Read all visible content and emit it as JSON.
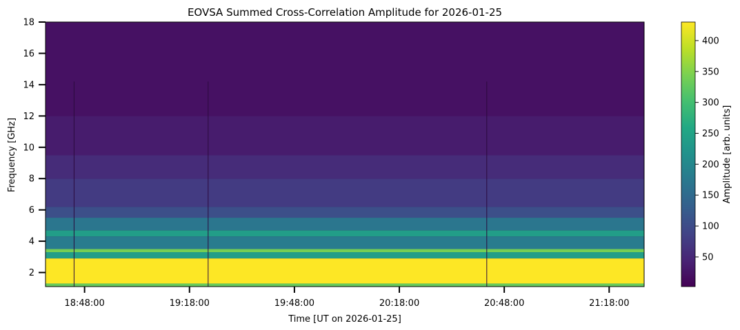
{
  "chart_data": {
    "type": "heatmap",
    "title": "EOVSA Summed Cross-Correlation Amplitude for 2026-01-25",
    "xlabel": "Time [UT on 2026-01-25]",
    "ylabel": "Frequency [GHz]",
    "colorbar_label": "Amplitude [arb. units]",
    "colormap": "viridis",
    "x_start": "18:36:50",
    "x_end": "21:28:00",
    "x_ticks": [
      "18:48:00",
      "19:18:00",
      "19:48:00",
      "20:18:00",
      "20:48:00",
      "21:18:00"
    ],
    "y_range": [
      1.1,
      18.0
    ],
    "y_ticks": [
      2,
      4,
      6,
      8,
      10,
      12,
      14,
      16,
      18
    ],
    "color_range": [
      2,
      430
    ],
    "colorbar_ticks": [
      50,
      100,
      150,
      200,
      250,
      300,
      350,
      400
    ],
    "frequency_bands": [
      {
        "freq_from": 1.1,
        "freq_to": 1.3,
        "amplitude": 330
      },
      {
        "freq_from": 1.3,
        "freq_to": 2.9,
        "amplitude": 430
      },
      {
        "freq_from": 2.9,
        "freq_to": 3.3,
        "amplitude": 240
      },
      {
        "freq_from": 3.3,
        "freq_to": 3.5,
        "amplitude": 340
      },
      {
        "freq_from": 3.5,
        "freq_to": 4.3,
        "amplitude": 180
      },
      {
        "freq_from": 4.3,
        "freq_to": 4.7,
        "amplitude": 240
      },
      {
        "freq_from": 4.7,
        "freq_to": 5.5,
        "amplitude": 170
      },
      {
        "freq_from": 5.5,
        "freq_to": 6.2,
        "amplitude": 105
      },
      {
        "freq_from": 6.2,
        "freq_to": 8.0,
        "amplitude": 75
      },
      {
        "freq_from": 8.0,
        "freq_to": 9.5,
        "amplitude": 55
      },
      {
        "freq_from": 9.5,
        "freq_to": 12.0,
        "amplitude": 35
      },
      {
        "freq_from": 12.0,
        "freq_to": 18.0,
        "amplitude": 22
      }
    ],
    "dropout_times": [
      "18:45:00",
      "19:23:20",
      "20:43:00"
    ]
  }
}
